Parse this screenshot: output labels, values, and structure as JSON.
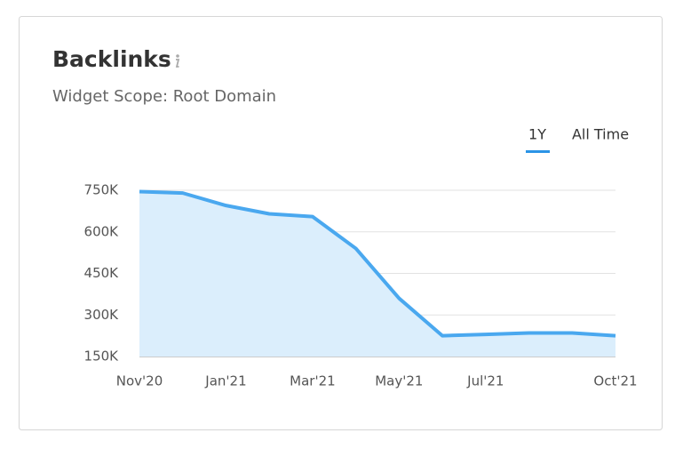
{
  "chart_data": {
    "type": "area",
    "title": "Backlinks",
    "subtitle": "Widget Scope: Root Domain",
    "tabs": [
      "1Y",
      "All Time"
    ],
    "categories": [
      "Nov'20",
      null,
      "Jan'21",
      null,
      "Mar'21",
      null,
      "May'21",
      null,
      "Jul'21",
      null,
      null,
      "Oct'21"
    ],
    "series": [
      {
        "name": "Backlinks",
        "color": "#4aa8ef",
        "values": [
          745000,
          740000,
          695000,
          665000,
          655000,
          540000,
          360000,
          225000,
          230000,
          235000,
          235000,
          225000
        ]
      }
    ],
    "ylim": [
      150000,
      750000
    ],
    "yticks": [
      {
        "value": 150000,
        "label": "150K"
      },
      {
        "value": 300000,
        "label": "300K"
      },
      {
        "value": 450000,
        "label": "450K"
      },
      {
        "value": 600000,
        "label": "600K"
      },
      {
        "value": 750000,
        "label": "750K"
      }
    ],
    "grid": true
  }
}
